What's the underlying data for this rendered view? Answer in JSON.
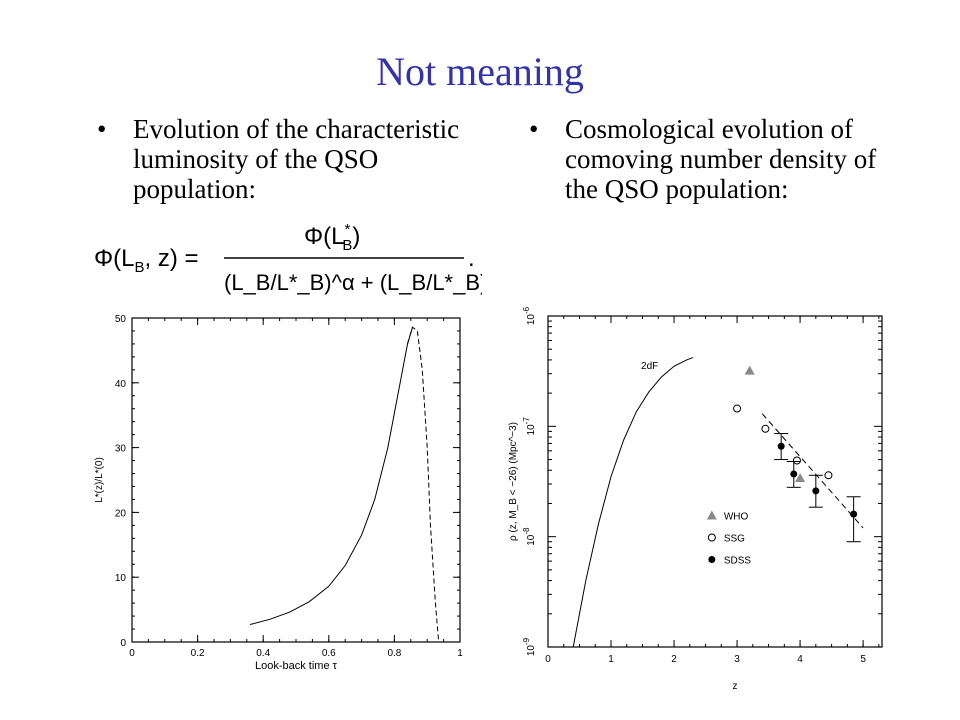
{
  "slide": {
    "title": "Not meaning",
    "bullet_char": "•",
    "left_bullet": "Evolution of the characteristic luminosity of the QSO population:",
    "right_bullet": "Cosmological evolution of comoving number density of the QSO population:",
    "formula": {
      "lhs": "Φ(L",
      "lhs_sub": "B",
      "lhs_tail": ", z) =",
      "numerator": "Φ(L",
      "numerator_sup": "*",
      "numerator_sub": "B",
      "numerator_tail": ")",
      "denominator": "(L_B/L*_B)^α + (L_B/L*_B)^β",
      "trailing": "."
    }
  },
  "chart_data": [
    {
      "type": "line",
      "title": "",
      "xlabel": "Look-back time τ",
      "ylabel": "L*(z)/L*(0)",
      "xlim": [
        0,
        1
      ],
      "ylim": [
        0,
        50
      ],
      "xticks": [
        "0",
        "0.2",
        "0.4",
        "0.6",
        "0.8",
        "1"
      ],
      "yticks": [
        "0",
        "10",
        "20",
        "30",
        "40",
        "50"
      ],
      "grid": false,
      "series": [
        {
          "style": "solid",
          "x": [
            0.36,
            0.42,
            0.48,
            0.54,
            0.6,
            0.65,
            0.7,
            0.74,
            0.78,
            0.81,
            0.84,
            0.855
          ],
          "y": [
            2.7,
            3.5,
            4.6,
            6.2,
            8.6,
            11.8,
            16.5,
            22,
            30,
            38,
            46,
            48.5
          ]
        },
        {
          "style": "dashed",
          "x": [
            0.84,
            0.855,
            0.87,
            0.885,
            0.9,
            0.91,
            0.925,
            0.935
          ],
          "y": [
            46,
            48.6,
            48,
            42,
            30,
            18,
            6,
            0
          ]
        }
      ]
    },
    {
      "type": "scatter",
      "title": "",
      "xlabel": "z",
      "ylabel": "ρ (z, M_B < −26)  (Mpc^−3)",
      "yscale": "log",
      "xlim": [
        0,
        5.3
      ],
      "ylim": [
        1e-09,
        1e-06
      ],
      "xticks": [
        "0",
        "1",
        "2",
        "3",
        "4",
        "5"
      ],
      "yticks": [
        "10^-9",
        "10^-8",
        "10^-7",
        "10^-6"
      ],
      "grid": false,
      "legend_position": "bottom-left",
      "series": [
        {
          "name": "2dF",
          "kind": "line",
          "x": [
            0.4,
            0.6,
            0.8,
            1.0,
            1.2,
            1.4,
            1.6,
            1.8,
            2.0,
            2.2,
            2.3
          ],
          "y": [
            1e-09,
            4e-09,
            1.3e-08,
            3.5e-08,
            7.5e-08,
            1.35e-07,
            2.05e-07,
            2.8e-07,
            3.5e-07,
            4e-07,
            4.2e-07
          ]
        },
        {
          "name": "WHO",
          "kind": "triangle",
          "x": [
            3.2,
            4.0
          ],
          "y": [
            3.2e-07,
            3.4e-08
          ]
        },
        {
          "name": "SSG",
          "kind": "open-circle",
          "x": [
            3.0,
            3.45,
            3.95,
            4.45
          ],
          "y": [
            1.45e-07,
            9.5e-08,
            4.9e-08,
            3.6e-08
          ]
        },
        {
          "name": "SDSS",
          "kind": "filled-circle",
          "x": [
            3.7,
            3.9,
            4.25,
            4.85
          ],
          "y": [
            6.6e-08,
            3.7e-08,
            2.6e-08,
            1.6e-08
          ],
          "err_low": [
            5e-08,
            2.8e-08,
            1.85e-08,
            9e-09
          ],
          "err_high": [
            8.6e-08,
            4.8e-08,
            3.6e-08,
            2.3e-08
          ]
        },
        {
          "name": "fit",
          "kind": "dashed-line",
          "x": [
            3.4,
            5.0
          ],
          "y": [
            1.3e-07,
            1.2e-08
          ]
        }
      ]
    }
  ]
}
